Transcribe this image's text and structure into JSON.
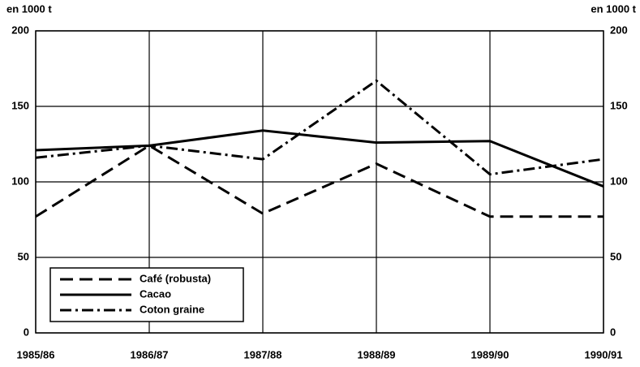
{
  "chart_data": {
    "type": "line",
    "y_label": "en 1000 t",
    "y2_label": "en 1000 t",
    "categories": [
      "1985/86",
      "1986/87",
      "1987/88",
      "1988/89",
      "1989/90",
      "1990/91"
    ],
    "series": [
      {
        "name": "Café (robusta)",
        "color": "#000000",
        "style": "dashed",
        "values": [
          77,
          124,
          79,
          112,
          77,
          77
        ]
      },
      {
        "name": "Cacao",
        "color": "#000000",
        "style": "solid",
        "values": [
          121,
          124,
          134,
          126,
          127,
          97
        ]
      },
      {
        "name": "Coton graine",
        "color": "#000000",
        "style": "dashdot",
        "values": [
          116,
          124,
          115,
          167,
          105,
          115
        ]
      }
    ],
    "ylim": [
      0,
      200
    ],
    "yticks": [
      0,
      50,
      100,
      150,
      200
    ],
    "y2lim": [
      0,
      200
    ],
    "y2ticks": [
      0,
      50,
      100,
      150,
      200
    ],
    "grid": true,
    "legend": "lower left"
  }
}
